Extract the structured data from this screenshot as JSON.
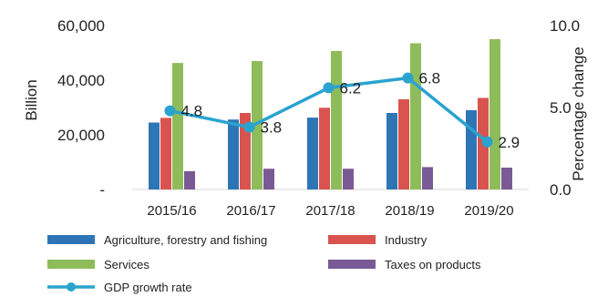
{
  "chart_data": {
    "type": "bar",
    "categories": [
      "2015/16",
      "2016/17",
      "2017/18",
      "2018/19",
      "2019/20"
    ],
    "series": [
      {
        "name": "Agriculture, forestry and fishing",
        "type": "bar",
        "axis": "left",
        "color": "#2e75b6",
        "values": [
          24500,
          25600,
          26300,
          28000,
          29000
        ]
      },
      {
        "name": "Industry",
        "type": "bar",
        "axis": "left",
        "color": "#d9534f",
        "values": [
          26200,
          28000,
          29900,
          33000,
          33500
        ]
      },
      {
        "name": "Services",
        "type": "bar",
        "axis": "left",
        "color": "#8fbc5a",
        "values": [
          46300,
          47000,
          50700,
          53500,
          55000
        ]
      },
      {
        "name": "Taxes on products",
        "type": "bar",
        "axis": "left",
        "color": "#7a5a95",
        "values": [
          6700,
          7600,
          7600,
          8200,
          8000
        ]
      },
      {
        "name": "GDP growth rate",
        "type": "line",
        "axis": "right",
        "color": "#2aa3cf",
        "values": [
          4.8,
          3.8,
          6.2,
          6.8,
          2.9
        ],
        "labels": [
          "4.8",
          "3.8",
          "6.2",
          "6.8",
          "2.9"
        ]
      }
    ],
    "ylabel": "Billion",
    "y2label": "Percentage change",
    "ylim": [
      0,
      60000
    ],
    "y2lim": [
      0,
      10
    ],
    "yticks": [
      "-",
      "20,000",
      "40,000",
      "60,000"
    ],
    "y2ticks": [
      "0.0",
      "5.0",
      "10.0"
    ],
    "grid": false,
    "legend_position": "bottom"
  }
}
